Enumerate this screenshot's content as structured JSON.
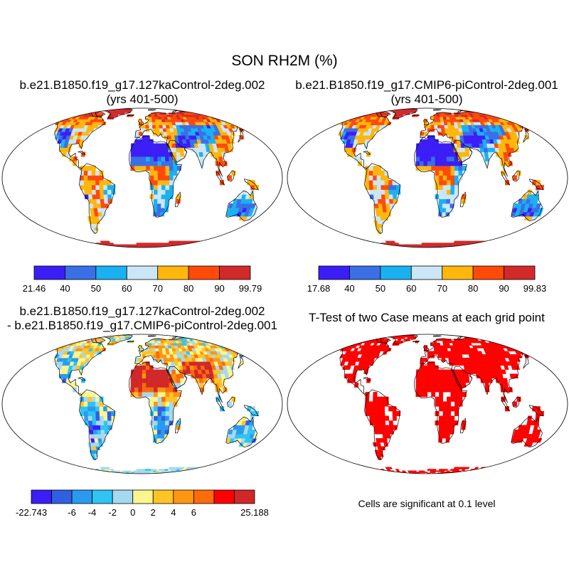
{
  "title": "SON RH2M (%)",
  "panels": {
    "top_left": {
      "title_line1": "b.e21.B1850.f19_g17.127kaControl-2deg.002",
      "title_line2": "(yrs 401-500)"
    },
    "top_right": {
      "title_line1": "b.e21.B1850.f19_g17.CMIP6-piControl-2deg.001",
      "title_line2": "(yrs 401-500)"
    },
    "bottom_left": {
      "title_line1": "b.e21.B1850.f19_g17.127kaControl-2deg.002",
      "title_line2": "- b.e21.B1850.f19_g17.CMIP6-piControl-2deg.001"
    },
    "bottom_right": {
      "title_line1": "T-Test of two Case means at each grid point",
      "note": "Cells are significant at 0.1 level"
    }
  },
  "colors": {
    "abs": [
      "#3b1ef5",
      "#3a6fe6",
      "#1ab1f2",
      "#cbe6f6",
      "#ffb60d",
      "#ff4a0a",
      "#d22a2a"
    ],
    "diff": [
      "#3b1ef5",
      "#3060e2",
      "#2a9af0",
      "#2fc4f4",
      "#a6d8f0",
      "#fbf58f",
      "#ffc424",
      "#ff9612",
      "#ff6a0a",
      "#ff0000",
      "#d02828"
    ],
    "sig": "#ff0000"
  },
  "chart_data": [
    {
      "type": "heatmap",
      "panel": "top_left",
      "variable": "RH2M",
      "units": "%",
      "colorbar": {
        "labels": [
          "21.46",
          "40",
          "50",
          "60",
          "70",
          "80",
          "90",
          "99.79"
        ],
        "bounds": [
          21.46,
          40,
          50,
          60,
          70,
          80,
          90,
          99.79
        ]
      }
    },
    {
      "type": "heatmap",
      "panel": "top_right",
      "variable": "RH2M",
      "units": "%",
      "colorbar": {
        "labels": [
          "17.68",
          "40",
          "50",
          "60",
          "70",
          "80",
          "90",
          "99.83"
        ],
        "bounds": [
          17.68,
          40,
          50,
          60,
          70,
          80,
          90,
          99.83
        ]
      }
    },
    {
      "type": "heatmap",
      "panel": "bottom_left",
      "variable": "RH2M difference",
      "units": "%",
      "colorbar": {
        "labels": [
          "-22.743",
          "-6",
          "-4",
          "-2",
          "0",
          "2",
          "4",
          "6",
          "25.188"
        ],
        "bounds": [
          -22.743,
          -8,
          -6,
          -4,
          -2,
          0,
          2,
          4,
          6,
          8,
          25.188
        ]
      }
    },
    {
      "type": "heatmap",
      "panel": "bottom_right",
      "variable": "significance mask",
      "significance_level": 0.1
    }
  ]
}
